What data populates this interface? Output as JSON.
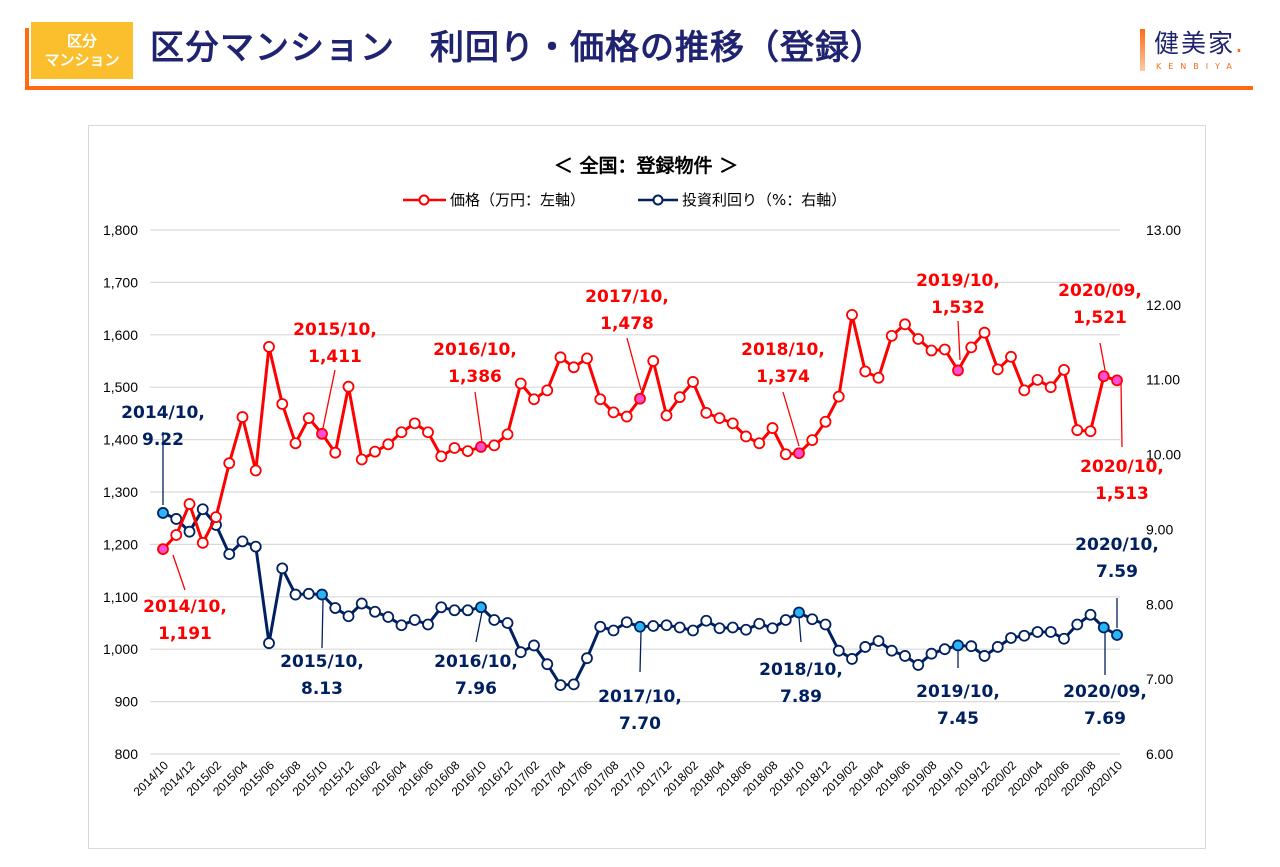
{
  "header": {
    "badge_line1": "区分",
    "badge_line2": "マンション",
    "title": "区分マンション　利回り・価格の推移（登録）",
    "logo_text": "健美家",
    "logo_sub": "KENBIYA"
  },
  "colors": {
    "accent_orange": "#ff6a13",
    "badge_yellow": "#fbbf2d",
    "title_navy": "#1f2370",
    "price_red": "#ff0000",
    "yield_navy": "#002060",
    "price_highlight": "#ff4fd8",
    "yield_highlight": "#29b6f6"
  },
  "chart_data": {
    "type": "line",
    "title": "＜ 全国：登録物件 ＞",
    "xlabel": "",
    "ylabel": "価格（万円）",
    "y2label": "投資利回り（%）",
    "ylim": [
      800,
      1800
    ],
    "y_ticks": [
      "1,800",
      "1,700",
      "1,600",
      "1,500",
      "1,400",
      "1,300",
      "1,200",
      "1,100",
      "1,000",
      "900",
      "800"
    ],
    "y2lim": [
      6.0,
      13.0
    ],
    "y2_ticks": [
      "13.00",
      "12.00",
      "11.00",
      "10.00",
      "9.00",
      "8.00",
      "7.00",
      "6.00"
    ],
    "grid": true,
    "legend_position": "top-center",
    "x": [
      "2014/10",
      "2014/11",
      "2014/12",
      "2015/01",
      "2015/02",
      "2015/03",
      "2015/04",
      "2015/05",
      "2015/06",
      "2015/07",
      "2015/08",
      "2015/09",
      "2015/10",
      "2015/11",
      "2015/12",
      "2016/01",
      "2016/02",
      "2016/03",
      "2016/04",
      "2016/05",
      "2016/06",
      "2016/07",
      "2016/08",
      "2016/09",
      "2016/10",
      "2016/11",
      "2016/12",
      "2017/01",
      "2017/02",
      "2017/03",
      "2017/04",
      "2017/05",
      "2017/06",
      "2017/07",
      "2017/08",
      "2017/09",
      "2017/10",
      "2017/11",
      "2017/12",
      "2018/01",
      "2018/02",
      "2018/03",
      "2018/04",
      "2018/05",
      "2018/06",
      "2018/07",
      "2018/08",
      "2018/09",
      "2018/10",
      "2018/11",
      "2018/12",
      "2019/01",
      "2019/02",
      "2019/03",
      "2019/04",
      "2019/05",
      "2019/06",
      "2019/07",
      "2019/08",
      "2019/09",
      "2019/10",
      "2019/11",
      "2019/12",
      "2020/01",
      "2020/02",
      "2020/03",
      "2020/04",
      "2020/05",
      "2020/06",
      "2020/07",
      "2020/08",
      "2020/09",
      "2020/10"
    ],
    "x_tick_labels": [
      "2014/10",
      "2014/12",
      "2015/02",
      "2015/04",
      "2015/06",
      "2015/08",
      "2015/10",
      "2015/12",
      "2016/02",
      "2016/04",
      "2016/06",
      "2016/08",
      "2016/10",
      "2016/12",
      "2017/02",
      "2017/04",
      "2017/06",
      "2017/08",
      "2017/10",
      "2017/12",
      "2018/02",
      "2018/04",
      "2018/06",
      "2018/08",
      "2018/10",
      "2018/12",
      "2019/02",
      "2019/04",
      "2019/06",
      "2019/08",
      "2019/10",
      "2019/12",
      "2020/02",
      "2020/04",
      "2020/06",
      "2020/08",
      "2020/10"
    ],
    "series": [
      {
        "name": "価格（万円：左軸）",
        "axis": "left",
        "color": "#ff0000",
        "values": [
          1191,
          1218,
          1277,
          1203,
          1252,
          1355,
          1443,
          1341,
          1577,
          1468,
          1393,
          1441,
          1411,
          1375,
          1501,
          1362,
          1377,
          1391,
          1414,
          1431,
          1414,
          1368,
          1384,
          1378,
          1386,
          1389,
          1410,
          1507,
          1477,
          1494,
          1557,
          1538,
          1555,
          1477,
          1452,
          1444,
          1478,
          1550,
          1446,
          1481,
          1510,
          1451,
          1441,
          1431,
          1406,
          1393,
          1422,
          1372,
          1374,
          1399,
          1434,
          1482,
          1638,
          1530,
          1518,
          1598,
          1620,
          1592,
          1570,
          1572,
          1532,
          1576,
          1604,
          1534,
          1558,
          1494,
          1514,
          1500,
          1533,
          1418,
          1416,
          1521,
          1513
        ]
      },
      {
        "name": "投資利回り（%：右軸）",
        "axis": "right",
        "color": "#002060",
        "values": [
          9.22,
          9.14,
          8.97,
          9.27,
          9.06,
          8.67,
          8.84,
          8.77,
          7.48,
          8.48,
          8.13,
          8.14,
          8.13,
          7.95,
          7.84,
          8.01,
          7.9,
          7.83,
          7.72,
          7.79,
          7.73,
          7.96,
          7.92,
          7.92,
          7.96,
          7.79,
          7.75,
          7.36,
          7.45,
          7.2,
          6.92,
          6.93,
          7.28,
          7.7,
          7.65,
          7.76,
          7.7,
          7.71,
          7.72,
          7.69,
          7.65,
          7.78,
          7.68,
          7.69,
          7.66,
          7.74,
          7.68,
          7.79,
          7.89,
          7.8,
          7.73,
          7.38,
          7.27,
          7.43,
          7.51,
          7.38,
          7.31,
          7.19,
          7.34,
          7.4,
          7.45,
          7.44,
          7.31,
          7.43,
          7.55,
          7.58,
          7.63,
          7.63,
          7.54,
          7.73,
          7.86,
          7.69,
          7.59
        ]
      }
    ],
    "annotations": [
      {
        "series": 0,
        "x": "2014/10",
        "label_line1": "2014/10,",
        "label_line2": "1,191",
        "value": 1191
      },
      {
        "series": 0,
        "x": "2015/10",
        "label_line1": "2015/10,",
        "label_line2": "1,411",
        "value": 1411
      },
      {
        "series": 0,
        "x": "2016/10",
        "label_line1": "2016/10,",
        "label_line2": "1,386",
        "value": 1386
      },
      {
        "series": 0,
        "x": "2017/10",
        "label_line1": "2017/10,",
        "label_line2": "1,478",
        "value": 1478
      },
      {
        "series": 0,
        "x": "2018/10",
        "label_line1": "2018/10,",
        "label_line2": "1,374",
        "value": 1374
      },
      {
        "series": 0,
        "x": "2019/10",
        "label_line1": "2019/10,",
        "label_line2": "1,532",
        "value": 1532
      },
      {
        "series": 0,
        "x": "2020/09",
        "label_line1": "2020/09,",
        "label_line2": "1,521",
        "value": 1521
      },
      {
        "series": 0,
        "x": "2020/10",
        "label_line1": "2020/10,",
        "label_line2": "1,513",
        "value": 1513
      },
      {
        "series": 1,
        "x": "2014/10",
        "label_line1": "2014/10,",
        "label_line2": "9.22",
        "value": 9.22
      },
      {
        "series": 1,
        "x": "2015/10",
        "label_line1": "2015/10,",
        "label_line2": "8.13",
        "value": 8.13
      },
      {
        "series": 1,
        "x": "2016/10",
        "label_line1": "2016/10,",
        "label_line2": "7.96",
        "value": 7.96
      },
      {
        "series": 1,
        "x": "2017/10",
        "label_line1": "2017/10,",
        "label_line2": "7.70",
        "value": 7.7
      },
      {
        "series": 1,
        "x": "2018/10",
        "label_line1": "2018/10,",
        "label_line2": "7.89",
        "value": 7.89
      },
      {
        "series": 1,
        "x": "2019/10",
        "label_line1": "2019/10,",
        "label_line2": "7.45",
        "value": 7.45
      },
      {
        "series": 1,
        "x": "2020/09",
        "label_line1": "2020/09,",
        "label_line2": "7.69",
        "value": 7.69
      },
      {
        "series": 1,
        "x": "2020/10",
        "label_line1": "2020/10,",
        "label_line2": "7.59",
        "value": 7.59
      }
    ]
  }
}
